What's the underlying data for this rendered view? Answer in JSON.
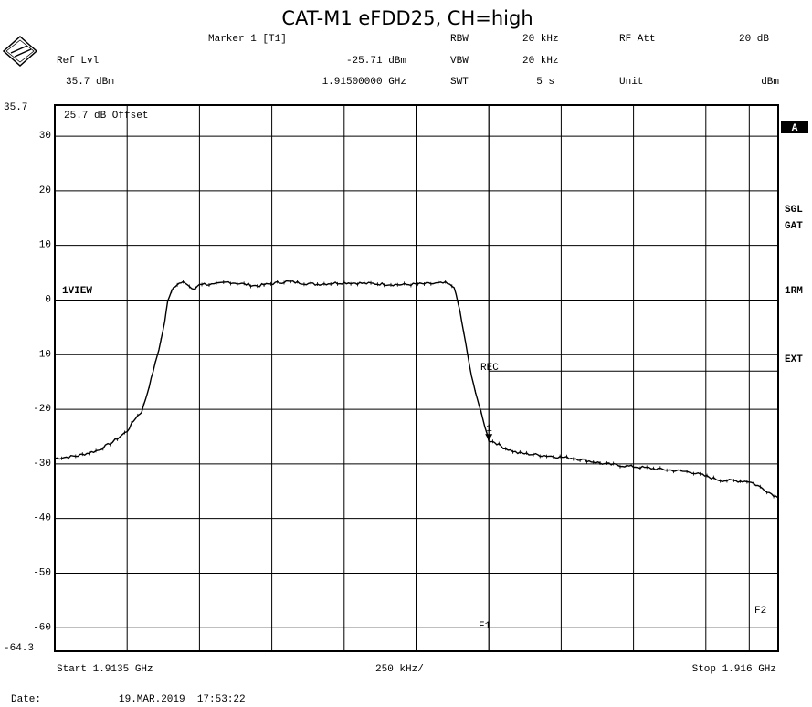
{
  "title": "CAT-M1 eFDD25, CH=high",
  "header": {
    "marker_label": "Marker 1 [T1]",
    "ref_lvl_label": "Ref Lvl",
    "ref_lvl_value": "35.7 dBm",
    "marker_level": "-25.71 dBm",
    "marker_freq": "1.91500000 GHz",
    "rbw_label": "RBW",
    "rbw_value": "20 kHz",
    "vbw_label": "VBW",
    "vbw_value": "20 kHz",
    "swt_label": "SWT",
    "swt_value": "5 s",
    "rf_att_label": "RF Att",
    "rf_att_value": "20 dB",
    "unit_label": "Unit",
    "unit_value": "dBm"
  },
  "plot_labels": {
    "offset": "25.7 dB Offset",
    "trace_view": "1VIEW",
    "rec": "REC",
    "f1": "F1",
    "f2": "F2",
    "marker_num": "1"
  },
  "side_labels": {
    "a": "A",
    "sgl": "SGL",
    "gat": "GAT",
    "rm": "1RM",
    "ext": "EXT"
  },
  "footer": {
    "start": "Start 1.9135 GHz",
    "span": "250 kHz/",
    "stop": "Stop 1.916 GHz",
    "date_label": "Date:",
    "date_value": "19.MAR.2019  17:53:22"
  },
  "chart_data": {
    "type": "line",
    "xlabel": "",
    "ylabel": "",
    "x_unit": "GHz",
    "y_unit": "dBm",
    "xlim": [
      1.9135,
      1.916
    ],
    "ylim": [
      -64.3,
      35.7
    ],
    "y_top_label": "35.7",
    "y_bottom_label": "-64.3",
    "y_ticks": [
      30,
      20,
      10,
      0,
      -10,
      -20,
      -30,
      -40,
      -50,
      -60
    ],
    "x_divisions": 10,
    "grid": true,
    "reference_lines": [
      {
        "name": "REC",
        "y": -13
      },
      {
        "name": "F1",
        "x": 1.915
      },
      {
        "name": "F2",
        "x": 1.9159
      }
    ],
    "marker": {
      "name": "1",
      "x": 1.915,
      "y": -25.71
    },
    "series": [
      {
        "x": [
          1.9135,
          1.91358,
          1.91365,
          1.9137,
          1.91375,
          1.91378,
          1.9138,
          1.91382,
          1.91384,
          1.91386,
          1.91388,
          1.91389,
          1.91391,
          1.91393,
          1.91395,
          1.91398,
          1.914,
          1.91405,
          1.9141,
          1.9142,
          1.9143,
          1.9144,
          1.9145,
          1.9146,
          1.9147,
          1.9148,
          1.91485,
          1.91488,
          1.9149,
          1.91492,
          1.91494,
          1.91496,
          1.91498,
          1.915,
          1.91502,
          1.91505,
          1.9151,
          1.9152,
          1.9153,
          1.9154,
          1.9155,
          1.9156,
          1.9157,
          1.9158,
          1.9159,
          1.91593,
          1.916
        ],
        "values": [
          -29,
          -28.5,
          -27.5,
          -26,
          -24,
          -21.5,
          -20.5,
          -17,
          -13,
          -9,
          -4,
          0,
          2.5,
          3,
          3.2,
          1.8,
          3,
          2.8,
          3.3,
          2.6,
          3.4,
          2.9,
          3.2,
          3.0,
          2.8,
          3.0,
          3.1,
          2.4,
          -2,
          -8,
          -14,
          -18,
          -22,
          -25.7,
          -26,
          -27,
          -28,
          -28.5,
          -29,
          -30,
          -30.5,
          -31,
          -31.5,
          -33,
          -33.2,
          -34,
          -36.2
        ]
      }
    ]
  }
}
